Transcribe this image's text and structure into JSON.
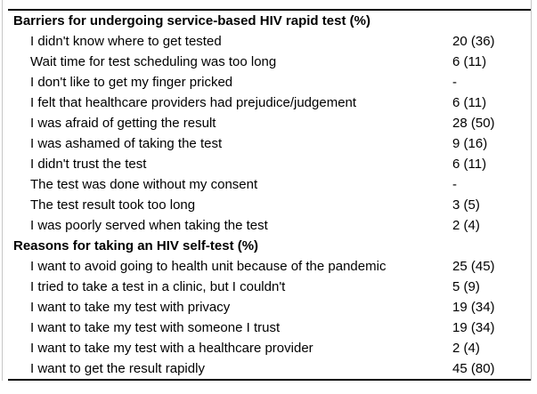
{
  "table": {
    "sections": [
      {
        "header": "Barriers for undergoing service-based HIV rapid test (%)",
        "rows": [
          {
            "label": "I didn't know where to get tested",
            "value": "20 (36)"
          },
          {
            "label": "Wait time for test scheduling was too long",
            "value": "6 (11)"
          },
          {
            "label": "I don't like to get my finger pricked",
            "value": "-"
          },
          {
            "label": "I felt that healthcare providers had prejudice/judgement",
            "value": "6 (11)"
          },
          {
            "label": "I was afraid of getting the result",
            "value": "28 (50)"
          },
          {
            "label": "I was ashamed of taking the test",
            "value": "9 (16)"
          },
          {
            "label": "I didn't trust the test",
            "value": "6 (11)"
          },
          {
            "label": "The test was done without my consent",
            "value": "-"
          },
          {
            "label": "The test result took too long",
            "value": "3 (5)"
          },
          {
            "label": "I was poorly served when taking the test",
            "value": "2 (4)"
          }
        ]
      },
      {
        "header": "Reasons for taking an HIV self-test (%)",
        "rows": [
          {
            "label": "I want to avoid going to health unit because of the pandemic",
            "value": "25 (45)"
          },
          {
            "label": "I tried to take a test in a clinic, but I couldn't",
            "value": "5 (9)"
          },
          {
            "label": "I want to take my test with privacy",
            "value": "19 (34)"
          },
          {
            "label": "I want to take my test with someone I trust",
            "value": "19 (34)"
          },
          {
            "label": "I want to take my test with a healthcare provider",
            "value": "2 (4)"
          },
          {
            "label": "I want to get the result rapidly",
            "value": "45 (80)"
          }
        ]
      }
    ],
    "colors": {
      "rule": "#000000",
      "frame_border": "#c6c6c6",
      "text": "#000000"
    }
  }
}
